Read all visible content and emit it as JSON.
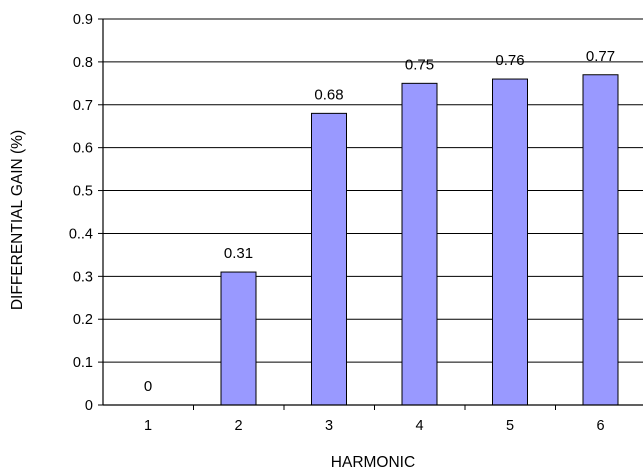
{
  "chart_data": {
    "type": "bar",
    "categories": [
      "1",
      "2",
      "3",
      "4",
      "5",
      "6"
    ],
    "values": [
      0,
      0.31,
      0.68,
      0.75,
      0.76,
      0.77
    ],
    "data_labels": [
      "0",
      "0.31",
      "0.68",
      "0.75",
      "0.76",
      "0.77"
    ],
    "xlabel": "HARMONIC",
    "ylabel": "DIFFERENTIAL GAIN (%)",
    "ylim": [
      0,
      0.9
    ],
    "yticks": [
      0,
      0.1,
      0.2,
      0.3,
      0.4,
      0.5,
      0.6,
      0.7,
      0.8,
      0.9
    ],
    "ytick_labels": [
      "0",
      "0.1",
      "0.2",
      "0.3",
      "0..4",
      "0.5",
      "0.6",
      "0.7",
      "0.8",
      "0.9"
    ],
    "grid": "horizontal",
    "bar_color": "#9999ff",
    "bar_edge_color": "#000000"
  }
}
